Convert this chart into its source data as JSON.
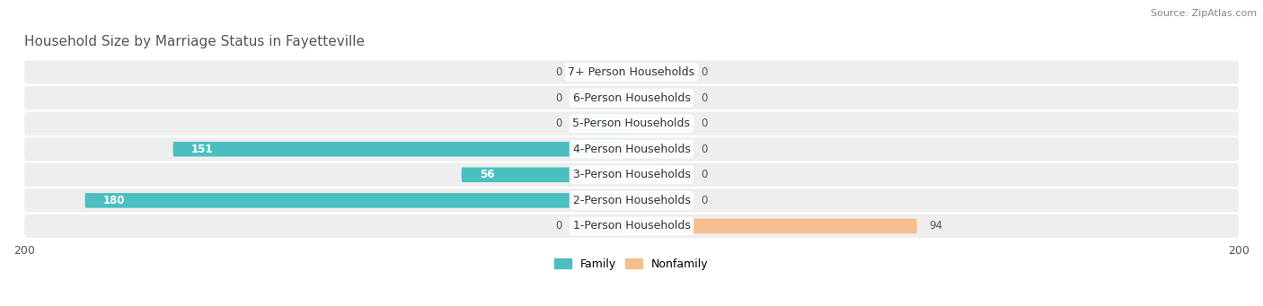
{
  "title": "Household Size by Marriage Status in Fayetteville",
  "source": "Source: ZipAtlas.com",
  "categories": [
    "7+ Person Households",
    "6-Person Households",
    "5-Person Households",
    "4-Person Households",
    "3-Person Households",
    "2-Person Households",
    "1-Person Households"
  ],
  "family_values": [
    0,
    0,
    0,
    151,
    56,
    180,
    0
  ],
  "nonfamily_values": [
    0,
    0,
    0,
    0,
    0,
    0,
    94
  ],
  "family_color": "#4BBFBF",
  "nonfamily_color": "#F5BE8E",
  "xlim": 200,
  "stub_size": 20,
  "background_color": "#f5f5f5",
  "row_bg_color": "#ececec",
  "row_stripe_color": "#e0e0e0",
  "title_fontsize": 11,
  "label_fontsize": 9,
  "value_fontsize": 8.5,
  "tick_fontsize": 9,
  "source_fontsize": 8
}
